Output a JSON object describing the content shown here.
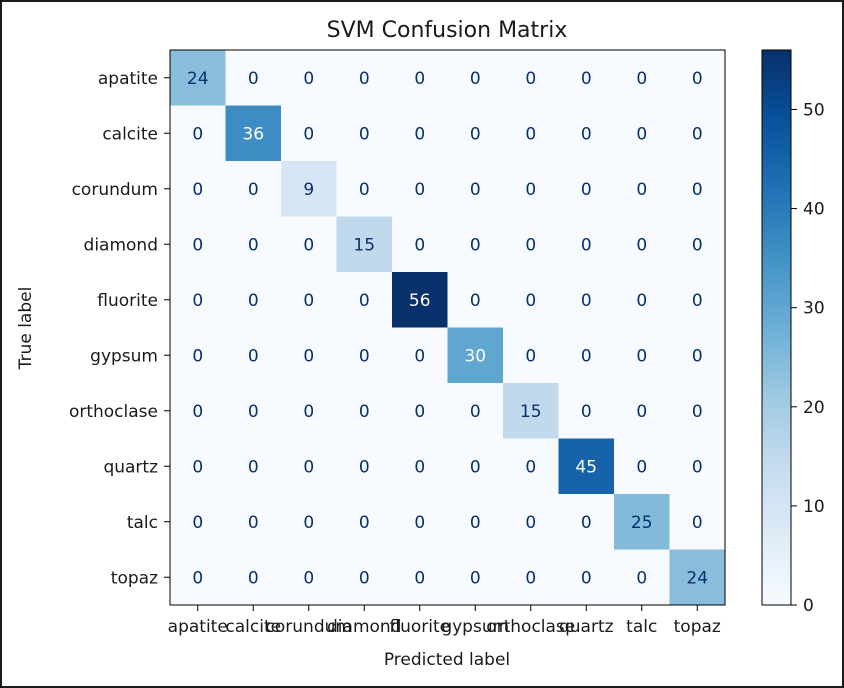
{
  "chart_data": {
    "type": "heatmap",
    "title": "SVM Confusion Matrix",
    "xlabel": "Predicted label",
    "ylabel": "True label",
    "x_categories": [
      "apatite",
      "calcite",
      "corundum",
      "diamond",
      "fluorite",
      "gypsum",
      "orthoclase",
      "quartz",
      "talc",
      "topaz"
    ],
    "y_categories": [
      "apatite",
      "calcite",
      "corundum",
      "diamond",
      "fluorite",
      "gypsum",
      "orthoclase",
      "quartz",
      "talc",
      "topaz"
    ],
    "values": [
      [
        24,
        0,
        0,
        0,
        0,
        0,
        0,
        0,
        0,
        0
      ],
      [
        0,
        36,
        0,
        0,
        0,
        0,
        0,
        0,
        0,
        0
      ],
      [
        0,
        0,
        9,
        0,
        0,
        0,
        0,
        0,
        0,
        0
      ],
      [
        0,
        0,
        0,
        15,
        0,
        0,
        0,
        0,
        0,
        0
      ],
      [
        0,
        0,
        0,
        0,
        56,
        0,
        0,
        0,
        0,
        0
      ],
      [
        0,
        0,
        0,
        0,
        0,
        30,
        0,
        0,
        0,
        0
      ],
      [
        0,
        0,
        0,
        0,
        0,
        0,
        15,
        0,
        0,
        0
      ],
      [
        0,
        0,
        0,
        0,
        0,
        0,
        0,
        45,
        0,
        0
      ],
      [
        0,
        0,
        0,
        0,
        0,
        0,
        0,
        0,
        25,
        0
      ],
      [
        0,
        0,
        0,
        0,
        0,
        0,
        0,
        0,
        0,
        24
      ]
    ],
    "colormap": "Blues",
    "colormap_stops": [
      "#f7fbff",
      "#deebf7",
      "#c6dbef",
      "#9ecae1",
      "#6baed6",
      "#4292c6",
      "#2171b5",
      "#08519c",
      "#08306b"
    ],
    "text_color_dark": "#08306b",
    "text_color_light": "#ffffff",
    "colorbar": {
      "range": [
        0,
        56
      ],
      "ticks": [
        0,
        10,
        20,
        30,
        40,
        50
      ]
    },
    "grid": false
  }
}
